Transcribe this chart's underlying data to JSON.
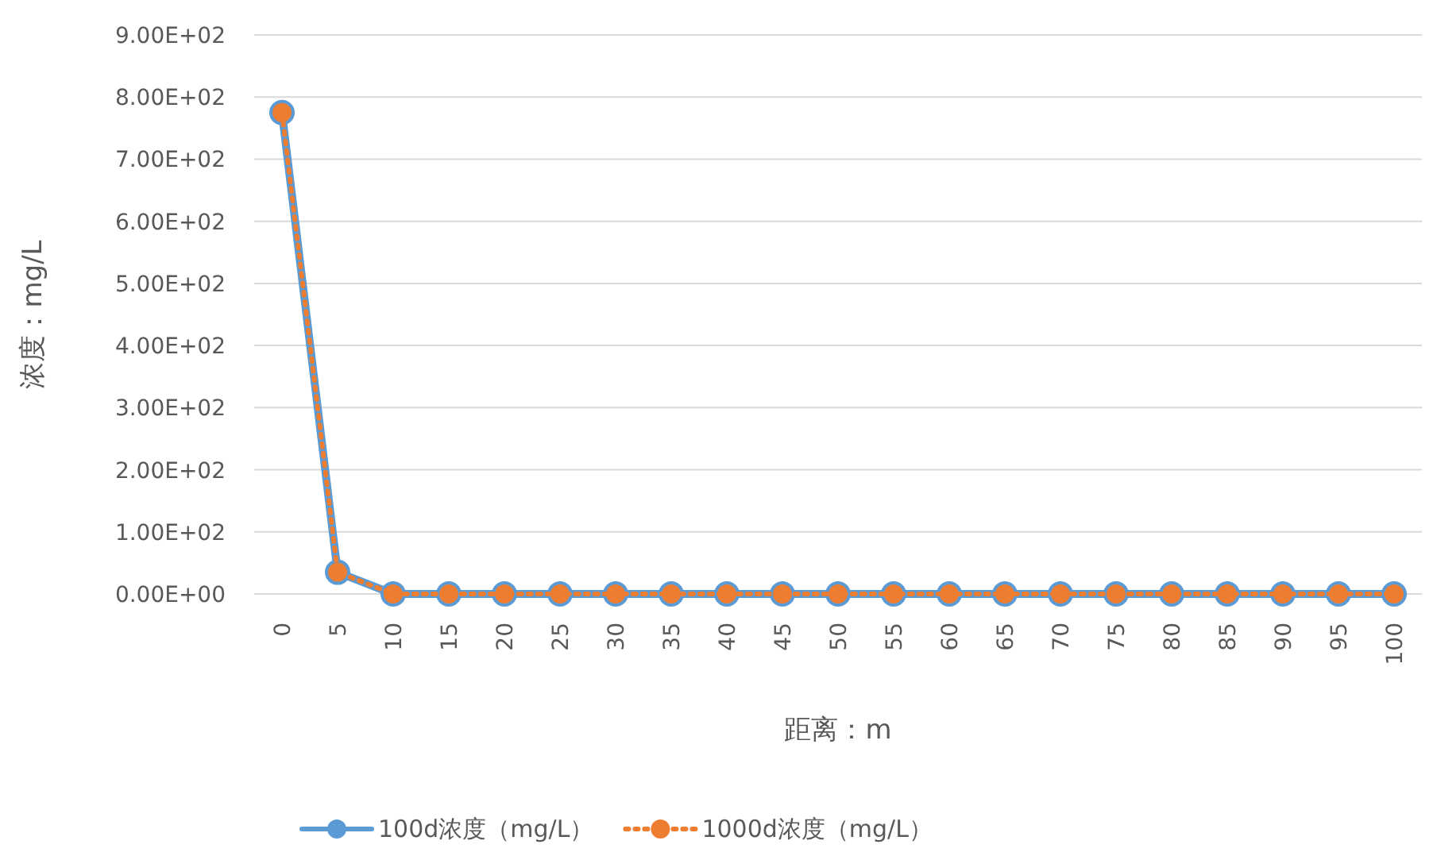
{
  "chart_data": {
    "type": "line",
    "xlabel": "距离：m",
    "ylabel": "浓度：mg/L",
    "categories": [
      "0",
      "5",
      "10",
      "15",
      "20",
      "25",
      "30",
      "35",
      "40",
      "45",
      "50",
      "55",
      "60",
      "65",
      "70",
      "75",
      "80",
      "85",
      "90",
      "95",
      "100"
    ],
    "series": [
      {
        "name": "100d浓度（mg/L）",
        "color": "#5b9bd5",
        "line_style": "solid",
        "values": [
          775,
          35,
          0,
          0,
          0,
          0,
          0,
          0,
          0,
          0,
          0,
          0,
          0,
          0,
          0,
          0,
          0,
          0,
          0,
          0,
          0
        ]
      },
      {
        "name": "1000d浓度（mg/L）",
        "color": "#ed7d31",
        "line_style": "dotted",
        "values": [
          775,
          35,
          0,
          0,
          0,
          0,
          0,
          0,
          0,
          0,
          0,
          0,
          0,
          0,
          0,
          0,
          0,
          0,
          0,
          0,
          0
        ]
      }
    ],
    "ylim": [
      0,
      900
    ],
    "yticks": [
      {
        "value": 0,
        "label": "0.00E+00"
      },
      {
        "value": 100,
        "label": "1.00E+02"
      },
      {
        "value": 200,
        "label": "2.00E+02"
      },
      {
        "value": 300,
        "label": "3.00E+02"
      },
      {
        "value": 400,
        "label": "4.00E+02"
      },
      {
        "value": 500,
        "label": "5.00E+02"
      },
      {
        "value": 600,
        "label": "6.00E+02"
      },
      {
        "value": 700,
        "label": "7.00E+02"
      },
      {
        "value": 800,
        "label": "8.00E+02"
      },
      {
        "value": 900,
        "label": "9.00E+02"
      }
    ],
    "grid": "y",
    "legend": "bottom",
    "marker": "circle"
  }
}
